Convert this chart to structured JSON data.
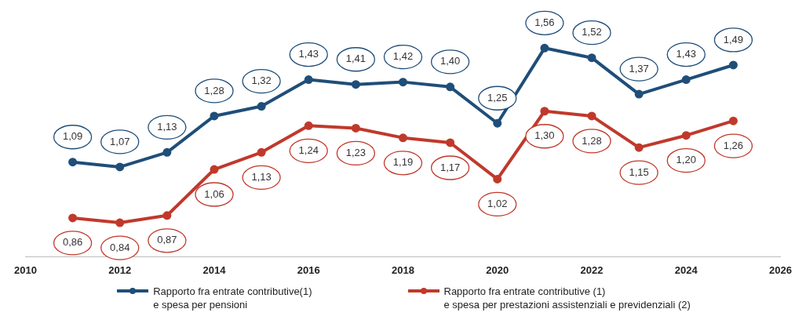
{
  "chart_data": {
    "type": "line",
    "x": [
      2011,
      2012,
      2013,
      2014,
      2015,
      2016,
      2017,
      2018,
      2019,
      2020,
      2021,
      2022,
      2023,
      2024,
      2025
    ],
    "xlim": [
      2010,
      2026
    ],
    "xticks": [
      2010,
      2012,
      2014,
      2016,
      2018,
      2020,
      2022,
      2024,
      2026
    ],
    "series": [
      {
        "name": "Rapporto fra entrate contributive(1)\ne spesa per pensioni",
        "color": "#1f4e79",
        "values": [
          1.09,
          1.07,
          1.13,
          1.28,
          1.32,
          1.43,
          1.41,
          1.42,
          1.4,
          1.25,
          1.56,
          1.52,
          1.37,
          1.43,
          1.49
        ],
        "value_labels": [
          "1,09",
          "1,07",
          "1,13",
          "1,28",
          "1,32",
          "1,43",
          "1,41",
          "1,42",
          "1,40",
          "1,25",
          "1,56",
          "1,52",
          "1,37",
          "1,43",
          "1,49"
        ]
      },
      {
        "name": "Rapporto fra entrate contributive (1)\ne spesa per prestazioni assistenziali e previdenziali (2)",
        "color": "#c0392b",
        "values": [
          0.86,
          0.84,
          0.87,
          1.06,
          1.13,
          1.24,
          1.23,
          1.19,
          1.17,
          1.02,
          1.3,
          1.28,
          1.15,
          1.2,
          1.26
        ],
        "value_labels": [
          "0,86",
          "0,84",
          "0,87",
          "1,06",
          "1,13",
          "1,24",
          "1,23",
          "1,19",
          "1,17",
          "1,02",
          "1,30",
          "1,28",
          "1,15",
          "1,20",
          "1,26"
        ]
      }
    ],
    "tick_labels": "x",
    "grid": false,
    "legend": "bottom",
    "marker": "circle",
    "line_style": "solid"
  }
}
